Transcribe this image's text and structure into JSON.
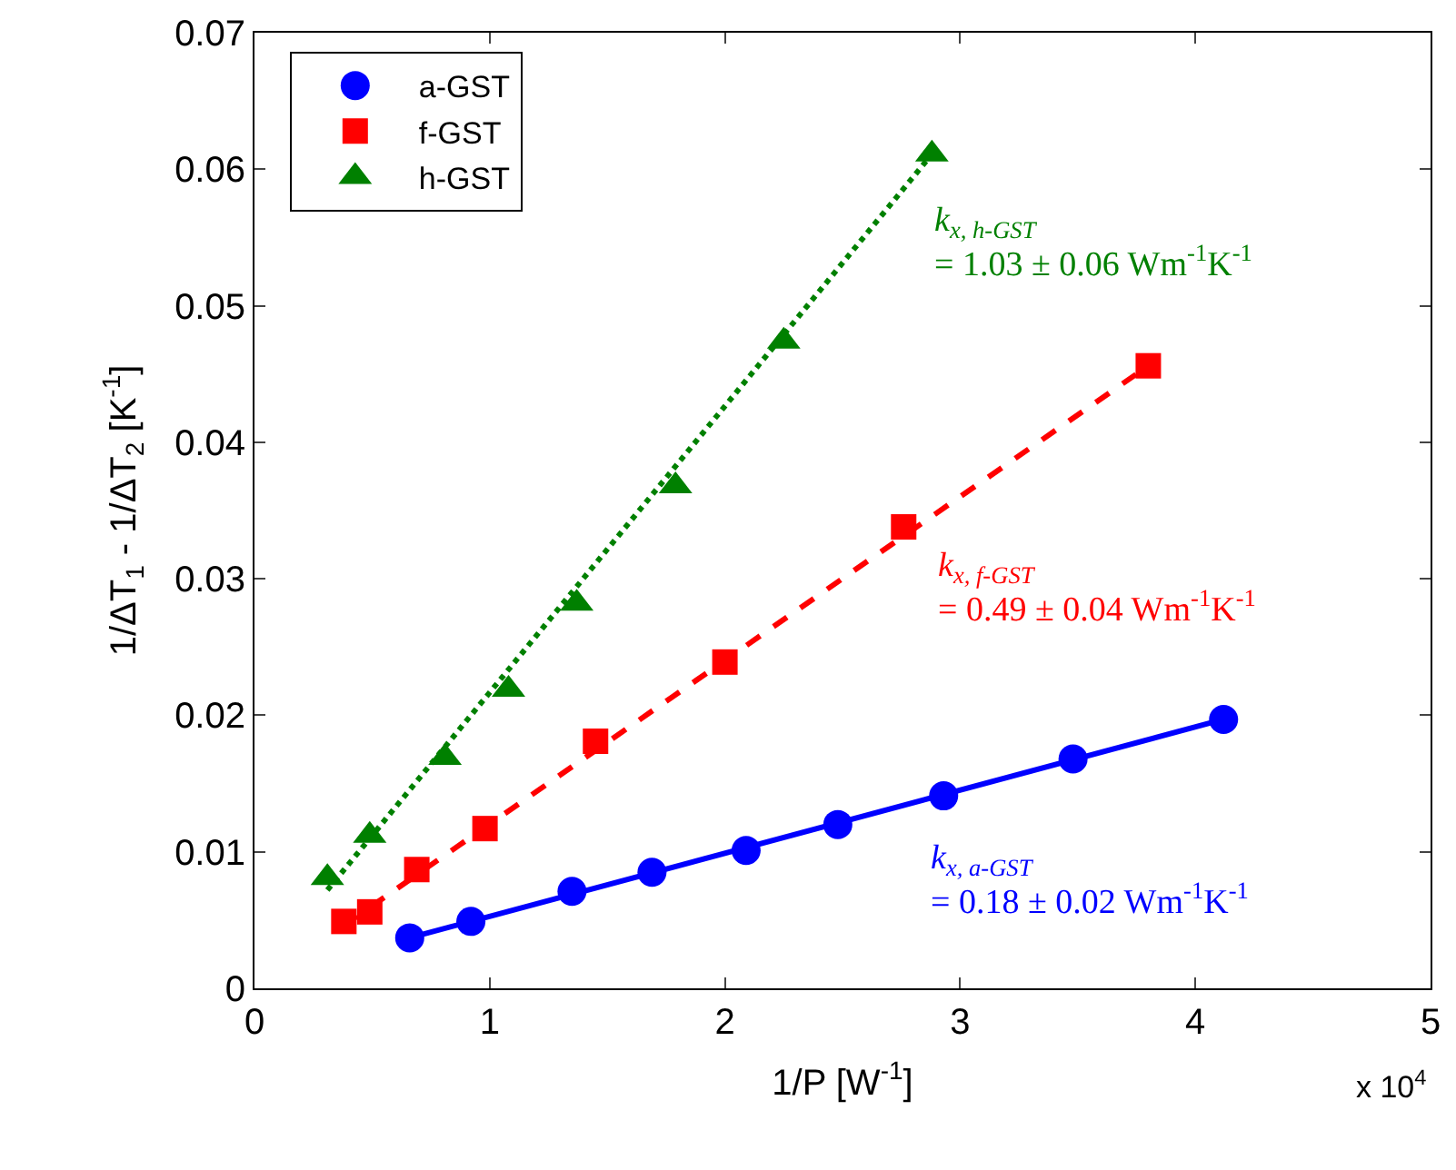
{
  "chart_data": {
    "type": "scatter",
    "xlabel": "1/P [W$^{-1}$]",
    "ylabel": "1/ΔT$_{1}$ - 1/ΔT$_{2}$ [K$^{-1}$]",
    "xlim": [
      0,
      5
    ],
    "xticks": [
      0,
      1,
      2,
      3,
      4,
      5
    ],
    "ylim": [
      0,
      0.07
    ],
    "yticks": [
      0,
      0.01,
      0.02,
      0.03,
      0.04,
      0.05,
      0.06,
      0.07
    ],
    "legend": "top left",
    "series": [
      {
        "name": "a-GST",
        "marker": "circle",
        "color": "#0000ff",
        "x": [
          0.66,
          0.92,
          1.35,
          1.69,
          2.09,
          2.48,
          2.93,
          3.48,
          4.12
        ],
        "values": [
          0.0037,
          0.0049,
          0.0071,
          0.0085,
          0.0101,
          0.012,
          0.0141,
          0.0168,
          0.0197
        ]
      },
      {
        "name": "f-GST",
        "marker": "square",
        "color": "#ff0000",
        "x": [
          0.38,
          0.49,
          0.69,
          0.98,
          1.45,
          2.0,
          2.76,
          3.8
        ],
        "values": [
          0.0049,
          0.0056,
          0.0087,
          0.0117,
          0.0181,
          0.0239,
          0.0338,
          0.0456
        ]
      },
      {
        "name": "h-GST",
        "marker": "triangle",
        "color": "#008000",
        "x": [
          0.31,
          0.49,
          0.81,
          1.08,
          1.37,
          1.79,
          2.25,
          2.88
        ],
        "values": [
          0.0081,
          0.0112,
          0.0169,
          0.0219,
          0.0282,
          0.0368,
          0.0474,
          0.0611
        ]
      },
      {
        "type": "line",
        "line_style": "solid",
        "color": "#0000ff",
        "x": [
          0.66,
          4.12
        ],
        "values": [
          0.0037,
          0.0197
        ]
      },
      {
        "type": "line",
        "line_style": "dashed",
        "color": "#ff0000",
        "x": [
          0.38,
          3.8
        ],
        "values": [
          0.0046,
          0.0456
        ]
      },
      {
        "type": "line",
        "line_style": "dotted",
        "color": "#008000",
        "x": [
          0.31,
          2.88
        ],
        "values": [
          0.0072,
          0.0611
        ]
      }
    ],
    "annotations": [
      "k$_{x, a-GST}$\n= 0.18 ± 0.02 Wm$^{-1}$K$^{-1}$",
      "k$_{x, f-GST}$\n= 0.49 ± 0.04 Wm$^{-1}$K$^{-1}$",
      "k$_{x, h-GST}$\n= 1.03 ± 0.06 Wm$^{-1}$K$^{-1}$",
      "x 10$^{4}$"
    ]
  }
}
